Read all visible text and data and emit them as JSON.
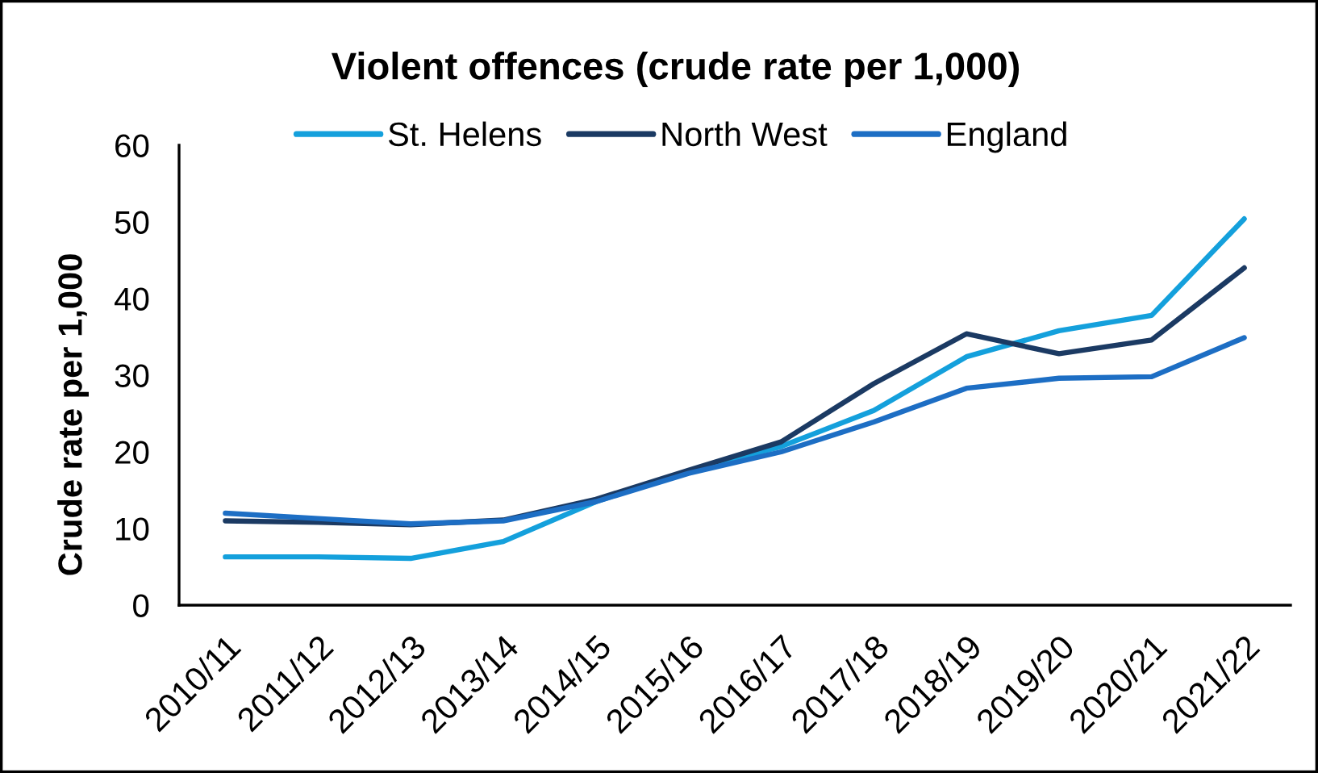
{
  "chart_data": {
    "type": "line",
    "title": "Violent offences (crude rate per 1,000)",
    "ylabel": "Crude rate per 1,000",
    "categories": [
      "2010/11",
      "2011/12",
      "2012/13",
      "2013/14",
      "2014/15",
      "2015/16",
      "2016/17",
      "2017/18",
      "2018/19",
      "2019/20",
      "2020/21",
      "2021/22"
    ],
    "series": [
      {
        "name": "St. Helens",
        "color": "#14a0dc",
        "values": [
          6.3,
          6.3,
          6.1,
          8.3,
          13.5,
          17.5,
          20.7,
          25.4,
          32.4,
          35.8,
          37.8,
          50.4
        ]
      },
      {
        "name": "North West",
        "color": "#1b3a63",
        "values": [
          11.0,
          10.8,
          10.5,
          11.1,
          13.8,
          17.6,
          21.3,
          28.9,
          35.4,
          32.8,
          34.6,
          44.0
        ]
      },
      {
        "name": "England",
        "color": "#1d6ec4",
        "values": [
          12.0,
          11.3,
          10.6,
          11.0,
          13.5,
          17.2,
          20.0,
          23.9,
          28.3,
          29.6,
          29.8,
          34.9
        ]
      }
    ],
    "ylim": [
      0,
      60
    ],
    "yticks": [
      0,
      10,
      20,
      30,
      40,
      50,
      60
    ],
    "legend": "top",
    "line_style": "solid"
  }
}
